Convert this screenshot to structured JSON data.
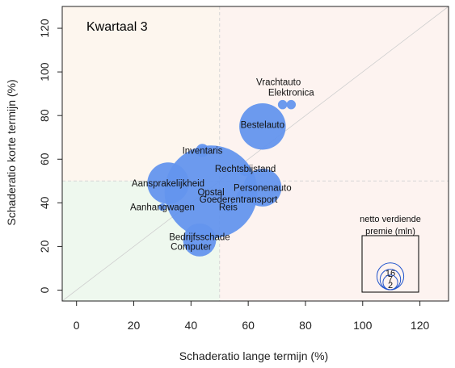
{
  "chart_data": {
    "type": "scatter",
    "title": "Kwartaal 3",
    "xlabel": "Schaderatio lange termijn (%)",
    "ylabel": "Schaderatio korte termijn (%)",
    "xlim": [
      -5,
      130
    ],
    "ylim": [
      -5,
      130
    ],
    "xticks": [
      0,
      20,
      40,
      60,
      80,
      100,
      120
    ],
    "yticks": [
      0,
      20,
      40,
      60,
      80,
      100,
      120
    ],
    "reference_value": 50,
    "diagonal": true,
    "points": [
      {
        "label": "Vrachtauto",
        "x": 72,
        "y": 85,
        "size": 0.3
      },
      {
        "label": "Elektronica",
        "x": 75,
        "y": 85,
        "size": 0.3
      },
      {
        "label": "Bestelauto",
        "x": 65,
        "y": 75,
        "size": 7.5
      },
      {
        "label": "Inventaris",
        "x": 44,
        "y": 64,
        "size": 0.6
      },
      {
        "label": "Rechtsbijstand",
        "x": 59,
        "y": 55,
        "size": 0.5
      },
      {
        "label": "Aansprakelijkheid",
        "x": 32,
        "y": 49,
        "size": 6.0
      },
      {
        "label": "Opstal",
        "x": 47,
        "y": 45,
        "size": 30
      },
      {
        "label": "Personenauto",
        "x": 65,
        "y": 47,
        "size": 5.0
      },
      {
        "label": "Goederentransport",
        "x": 58,
        "y": 43,
        "size": 0.5
      },
      {
        "label": "Aanhangwagen",
        "x": 30,
        "y": 38,
        "size": 0.2
      },
      {
        "label": "Reis",
        "x": 53,
        "y": 38,
        "size": 0.3
      },
      {
        "label": "Bedrijfsschade",
        "x": 43,
        "y": 23,
        "size": 3.8
      },
      {
        "label": "Computer",
        "x": 40,
        "y": 20,
        "size": 0.2
      }
    ],
    "bubble_color": "#6495ED",
    "legend": {
      "title_line1": "netto verdiende",
      "title_line2": "premie (mln)",
      "sizes": [
        2,
        7,
        16
      ],
      "placement": "bottom-right"
    },
    "quadrant_colors": {
      "low_low": "#EEF8EE",
      "high_any": "#FDF3F0",
      "low_high": "#FDF6EE",
      "line": "#2255CC"
    }
  }
}
